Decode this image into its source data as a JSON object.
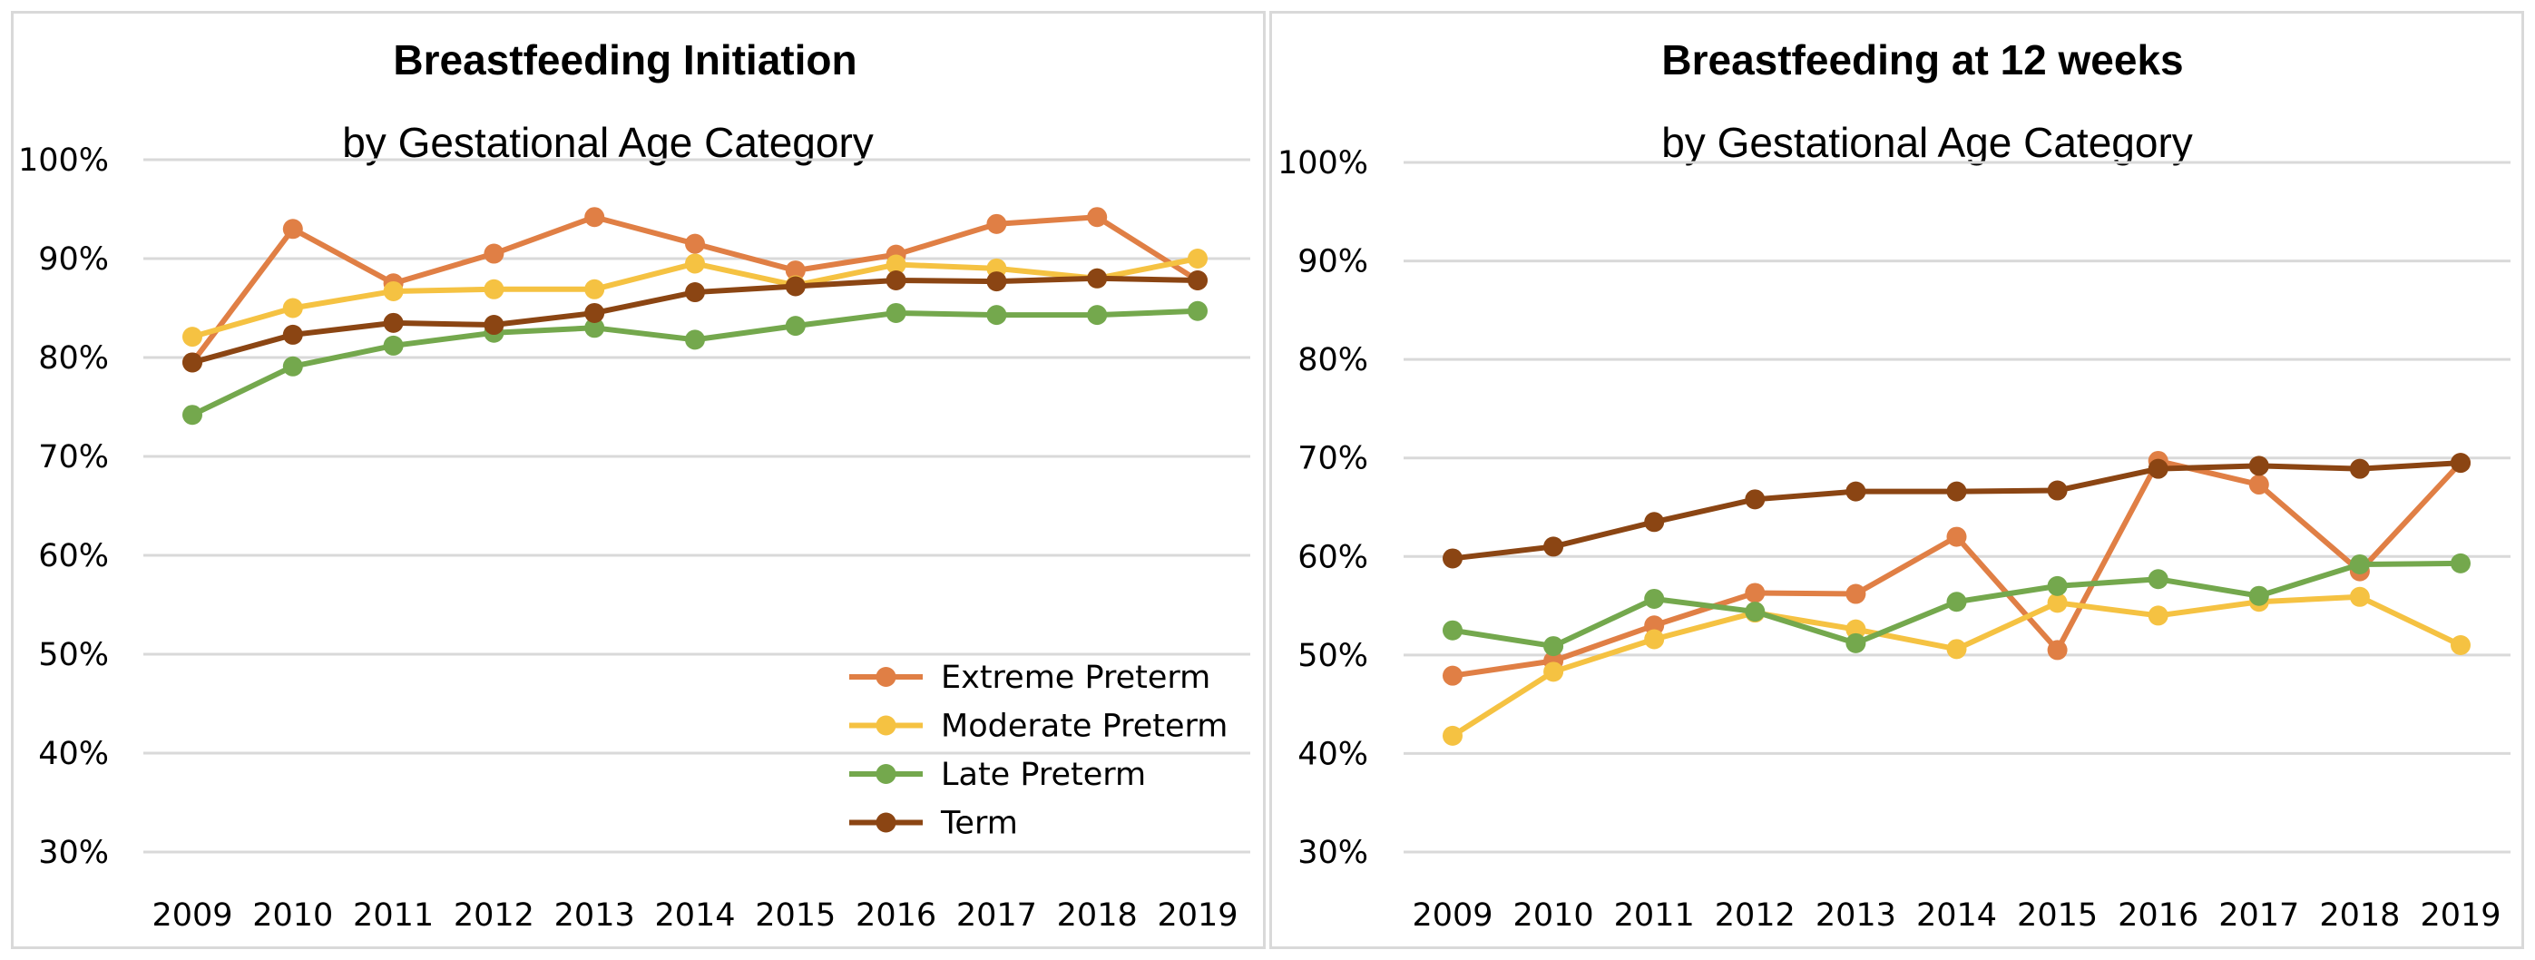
{
  "chart_data": [
    {
      "type": "line",
      "title": "Breastfeeding Initiation",
      "subtitle": "by Gestational Age Category",
      "x": [
        "2009",
        "2010",
        "2011",
        "2012",
        "2013",
        "2014",
        "2015",
        "2016",
        "2017",
        "2018",
        "2019"
      ],
      "ylim": [
        30,
        100
      ],
      "yticks": [
        "30%",
        "40%",
        "50%",
        "60%",
        "70%",
        "80%",
        "90%",
        "100%"
      ],
      "ytick_values": [
        30,
        40,
        50,
        60,
        70,
        80,
        90,
        100
      ],
      "grid": true,
      "legend": "bottom-right",
      "series": [
        {
          "name": "Extreme Preterm",
          "color": "#e07f45",
          "values": [
            79.5,
            93.0,
            87.5,
            90.5,
            94.2,
            91.5,
            88.8,
            90.4,
            93.5,
            94.2,
            87.8
          ]
        },
        {
          "name": "Moderate Preterm",
          "color": "#f5c242",
          "values": [
            82.1,
            85.0,
            86.7,
            86.9,
            86.9,
            89.5,
            87.3,
            89.4,
            89.0,
            88.0,
            90.0
          ]
        },
        {
          "name": "Late Preterm",
          "color": "#74a84d",
          "values": [
            74.2,
            79.1,
            81.2,
            82.5,
            83.0,
            81.8,
            83.2,
            84.5,
            84.3,
            84.3,
            84.7
          ]
        },
        {
          "name": "Term",
          "color": "#8b4513",
          "values": [
            79.5,
            82.3,
            83.5,
            83.3,
            84.5,
            86.6,
            87.2,
            87.8,
            87.7,
            88.0,
            87.8
          ]
        }
      ]
    },
    {
      "type": "line",
      "title": "Breastfeeding at 12 weeks",
      "subtitle": "by Gestational Age Category",
      "x": [
        "2009",
        "2010",
        "2011",
        "2012",
        "2013",
        "2014",
        "2015",
        "2016",
        "2017",
        "2018",
        "2019"
      ],
      "ylim": [
        30,
        100
      ],
      "yticks": [
        "30%",
        "40%",
        "50%",
        "60%",
        "70%",
        "80%",
        "90%",
        "100%"
      ],
      "ytick_values": [
        30,
        40,
        50,
        60,
        70,
        80,
        90,
        100
      ],
      "grid": true,
      "legend": "none",
      "series": [
        {
          "name": "Extreme Preterm",
          "color": "#e07f45",
          "values": [
            47.9,
            49.4,
            53.0,
            56.3,
            56.2,
            62.0,
            50.5,
            69.7,
            67.3,
            58.5,
            69.5
          ]
        },
        {
          "name": "Moderate Preterm",
          "color": "#f5c242",
          "values": [
            41.8,
            48.3,
            51.6,
            54.3,
            52.6,
            50.6,
            55.3,
            54.0,
            55.4,
            55.9,
            51.0
          ]
        },
        {
          "name": "Late Preterm",
          "color": "#74a84d",
          "values": [
            52.5,
            50.9,
            55.7,
            54.4,
            51.2,
            55.4,
            57.0,
            57.7,
            56.0,
            59.2,
            59.3
          ]
        },
        {
          "name": "Term",
          "color": "#8b4513",
          "values": [
            59.8,
            61.0,
            63.5,
            65.8,
            66.6,
            66.6,
            66.7,
            68.9,
            69.2,
            68.9,
            69.5
          ]
        }
      ]
    }
  ]
}
